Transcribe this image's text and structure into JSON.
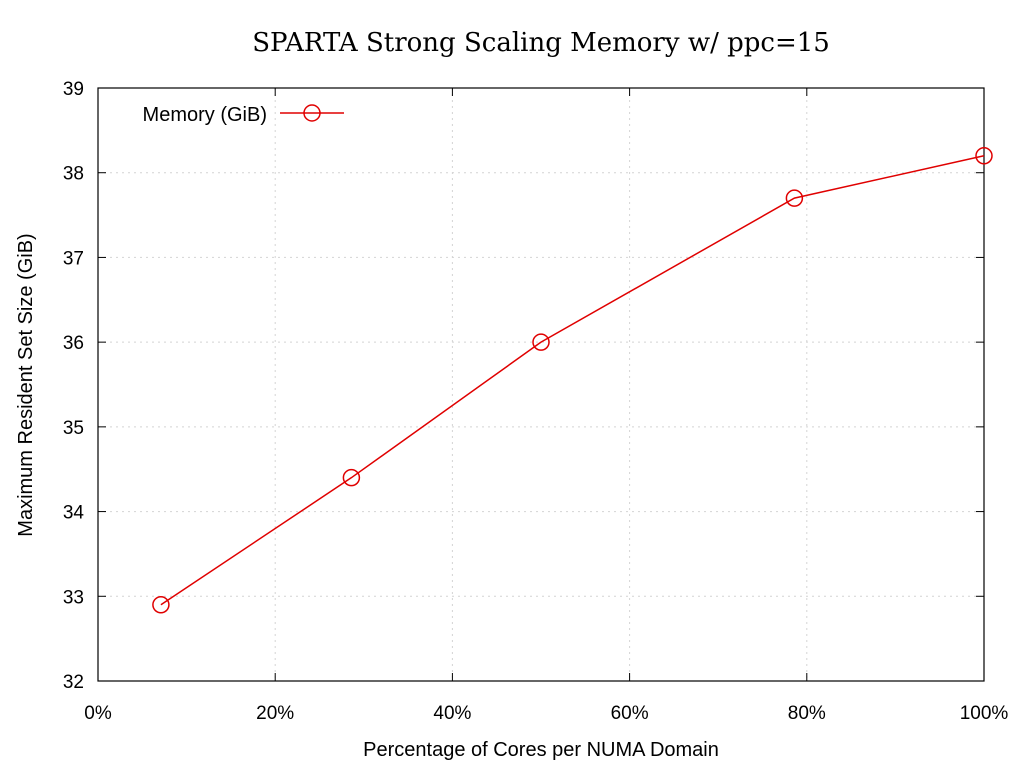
{
  "chart_data": {
    "type": "line",
    "title": "SPARTA Strong Scaling Memory w/ ppc=15",
    "xlabel": "Percentage of Cores per NUMA Domain",
    "ylabel": "Maximum Resident Set Size (GiB)",
    "xlim": [
      0,
      100
    ],
    "ylim": [
      32,
      39
    ],
    "x_ticks": [
      0,
      20,
      40,
      60,
      80,
      100
    ],
    "x_tick_labels": [
      "0%",
      "20%",
      "40%",
      "60%",
      "80%",
      "100%"
    ],
    "y_ticks": [
      32,
      33,
      34,
      35,
      36,
      37,
      38,
      39
    ],
    "y_tick_labels": [
      "32",
      "33",
      "34",
      "35",
      "36",
      "37",
      "38",
      "39"
    ],
    "grid": true,
    "legend_position": "top-left",
    "series": [
      {
        "name": "Memory (GiB)",
        "color": "#e00000",
        "marker": "circle",
        "x": [
          7.1,
          28.6,
          50.0,
          78.6,
          100.0
        ],
        "y": [
          32.9,
          34.4,
          36.0,
          37.7,
          38.2
        ]
      }
    ]
  }
}
